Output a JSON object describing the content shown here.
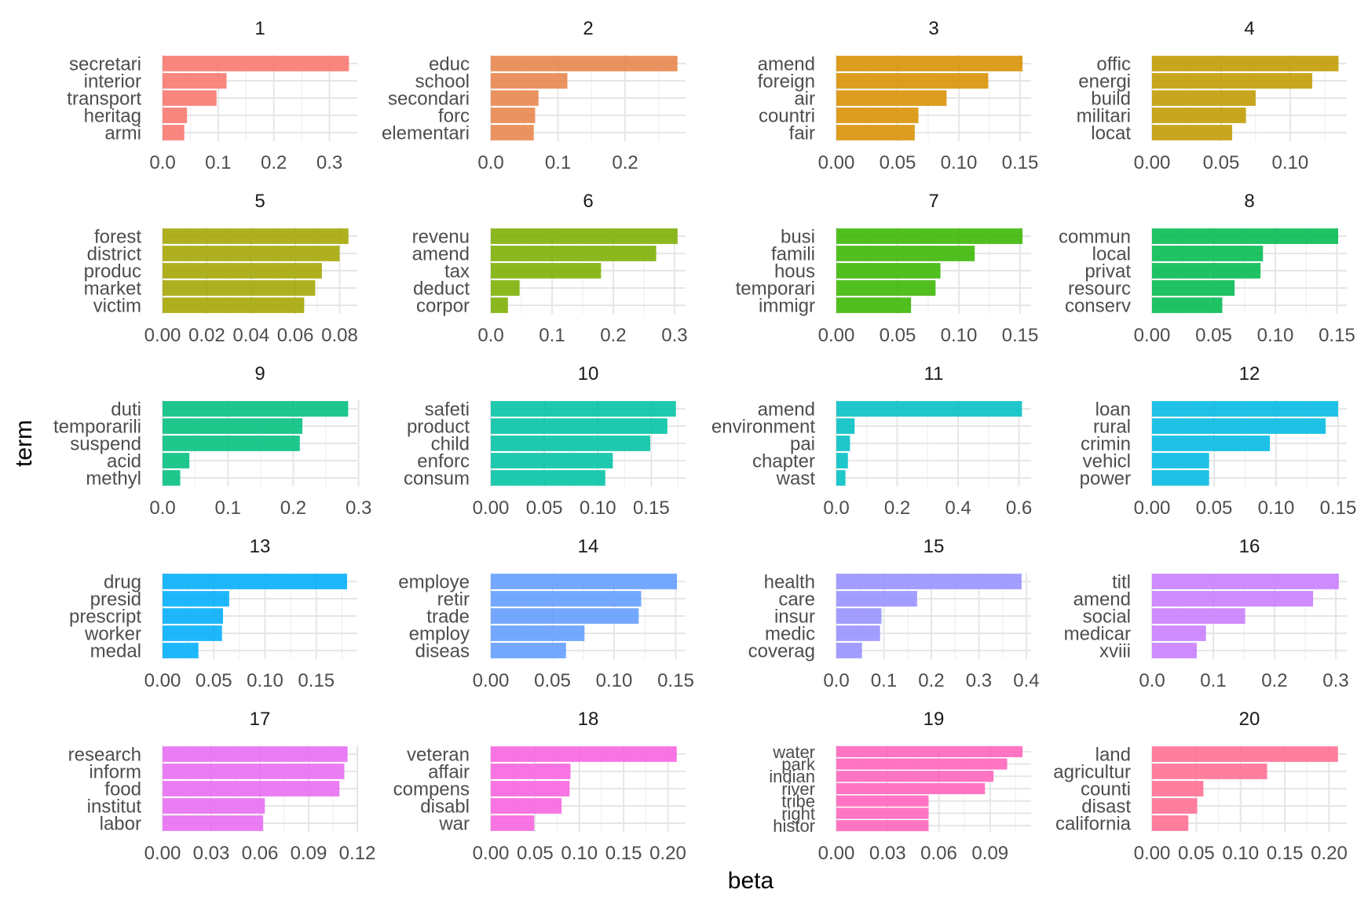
{
  "chart_data": {
    "type": "bar",
    "orientation": "horizontal",
    "layout": "facet-grid 5 rows x 4 cols",
    "xlabel": "beta",
    "ylabel": "term",
    "grid": true,
    "legend": "none",
    "panels": [
      {
        "title": "1",
        "color": "#F8766D",
        "terms": [
          "secretari",
          "interior",
          "transport",
          "heritag",
          "armi"
        ],
        "values": [
          0.335,
          0.115,
          0.097,
          0.044,
          0.039
        ],
        "xlim": [
          0,
          0.35
        ],
        "ticks": [
          0.0,
          0.1,
          0.2,
          0.3
        ],
        "tick_labels": [
          "0.0",
          "0.1",
          "0.2",
          "0.3"
        ]
      },
      {
        "title": "2",
        "color": "#E8844A",
        "terms": [
          "educ",
          "school",
          "secondari",
          "forc",
          "elementari"
        ],
        "values": [
          0.278,
          0.114,
          0.071,
          0.066,
          0.064
        ],
        "xlim": [
          0,
          0.29
        ],
        "ticks": [
          0.0,
          0.1,
          0.2
        ],
        "tick_labels": [
          "0.0",
          "0.1",
          "0.2"
        ]
      },
      {
        "title": "3",
        "color": "#D89000",
        "terms": [
          "amend",
          "foreign",
          "air",
          "countri",
          "fair"
        ],
        "values": [
          0.152,
          0.124,
          0.09,
          0.067,
          0.064
        ],
        "xlim": [
          0,
          0.159
        ],
        "ticks": [
          0.0,
          0.05,
          0.1,
          0.15
        ],
        "tick_labels": [
          "0.00",
          "0.05",
          "0.10",
          "0.15"
        ]
      },
      {
        "title": "4",
        "color": "#C09B00",
        "terms": [
          "offic",
          "energi",
          "build",
          "militari",
          "locat"
        ],
        "values": [
          0.135,
          0.116,
          0.075,
          0.068,
          0.058
        ],
        "xlim": [
          0,
          0.141
        ],
        "ticks": [
          0.0,
          0.05,
          0.1
        ],
        "tick_labels": [
          "0.00",
          "0.05",
          "0.10"
        ]
      },
      {
        "title": "5",
        "color": "#A3A500",
        "terms": [
          "forest",
          "district",
          "produc",
          "market",
          "victim"
        ],
        "values": [
          0.084,
          0.08,
          0.072,
          0.069,
          0.064
        ],
        "xlim": [
          0,
          0.088
        ],
        "ticks": [
          0.0,
          0.02,
          0.04,
          0.06,
          0.08
        ],
        "tick_labels": [
          "0.00",
          "0.02",
          "0.04",
          "0.06",
          "0.08"
        ]
      },
      {
        "title": "6",
        "color": "#7CAE00",
        "terms": [
          "revenu",
          "amend",
          "tax",
          "deduct",
          "corpor"
        ],
        "values": [
          0.305,
          0.27,
          0.18,
          0.047,
          0.028
        ],
        "xlim": [
          0,
          0.318
        ],
        "ticks": [
          0.0,
          0.1,
          0.2,
          0.3
        ],
        "tick_labels": [
          "0.0",
          "0.1",
          "0.2",
          "0.3"
        ]
      },
      {
        "title": "7",
        "color": "#39B600",
        "terms": [
          "busi",
          "famili",
          "hous",
          "temporari",
          "immigr"
        ],
        "values": [
          0.152,
          0.113,
          0.085,
          0.081,
          0.061
        ],
        "xlim": [
          0,
          0.159
        ],
        "ticks": [
          0.0,
          0.05,
          0.1,
          0.15
        ],
        "tick_labels": [
          "0.00",
          "0.05",
          "0.10",
          "0.15"
        ]
      },
      {
        "title": "8",
        "color": "#00BB4E",
        "terms": [
          "commun",
          "local",
          "privat",
          "resourc",
          "conserv"
        ],
        "values": [
          0.151,
          0.09,
          0.088,
          0.067,
          0.057
        ],
        "xlim": [
          0,
          0.158
        ],
        "ticks": [
          0.0,
          0.05,
          0.1,
          0.15
        ],
        "tick_labels": [
          "0.00",
          "0.05",
          "0.10",
          "0.15"
        ]
      },
      {
        "title": "9",
        "color": "#00BF7D",
        "terms": [
          "duti",
          "temporarili",
          "suspend",
          "acid",
          "methyl"
        ],
        "values": [
          0.284,
          0.214,
          0.21,
          0.041,
          0.027
        ],
        "xlim": [
          0,
          0.298
        ],
        "ticks": [
          0.0,
          0.1,
          0.2,
          0.3
        ],
        "tick_labels": [
          "0.0",
          "0.1",
          "0.2",
          "0.3"
        ]
      },
      {
        "title": "10",
        "color": "#00C1A3",
        "terms": [
          "safeti",
          "product",
          "child",
          "enforc",
          "consum"
        ],
        "values": [
          0.173,
          0.165,
          0.149,
          0.114,
          0.107
        ],
        "xlim": [
          0,
          0.182
        ],
        "ticks": [
          0.0,
          0.05,
          0.1,
          0.15
        ],
        "tick_labels": [
          "0.00",
          "0.05",
          "0.10",
          "0.15"
        ]
      },
      {
        "title": "11",
        "color": "#00BFC4",
        "terms": [
          "amend",
          "environment",
          "pai",
          "chapter",
          "wast"
        ],
        "values": [
          0.61,
          0.06,
          0.045,
          0.038,
          0.03
        ],
        "xlim": [
          0,
          0.64
        ],
        "ticks": [
          0.0,
          0.2,
          0.4,
          0.6
        ],
        "tick_labels": [
          "0.0",
          "0.2",
          "0.4",
          "0.6"
        ]
      },
      {
        "title": "12",
        "color": "#00B9E3",
        "terms": [
          "loan",
          "rural",
          "crimin",
          "vehicl",
          "power"
        ],
        "values": [
          0.15,
          0.14,
          0.095,
          0.046,
          0.046
        ],
        "xlim": [
          0,
          0.157
        ],
        "ticks": [
          0.0,
          0.05,
          0.1,
          0.15
        ],
        "tick_labels": [
          "0.00",
          "0.05",
          "0.10",
          "0.15"
        ]
      },
      {
        "title": "13",
        "color": "#00ADFA",
        "terms": [
          "drug",
          "presid",
          "prescript",
          "worker",
          "medal"
        ],
        "values": [
          0.18,
          0.065,
          0.059,
          0.058,
          0.035
        ],
        "xlim": [
          0,
          0.19
        ],
        "ticks": [
          0.0,
          0.05,
          0.1,
          0.15
        ],
        "tick_labels": [
          "0.00",
          "0.05",
          "0.10",
          "0.15"
        ]
      },
      {
        "title": "14",
        "color": "#619CFF",
        "terms": [
          "employe",
          "retir",
          "trade",
          "employ",
          "diseas"
        ],
        "values": [
          0.151,
          0.122,
          0.12,
          0.076,
          0.061
        ],
        "xlim": [
          0,
          0.158
        ],
        "ticks": [
          0.0,
          0.05,
          0.1,
          0.15
        ],
        "tick_labels": [
          "0.00",
          "0.05",
          "0.10",
          "0.15"
        ]
      },
      {
        "title": "15",
        "color": "#9590FF",
        "terms": [
          "health",
          "care",
          "insur",
          "medic",
          "coverag"
        ],
        "values": [
          0.39,
          0.17,
          0.095,
          0.092,
          0.054
        ],
        "xlim": [
          0,
          0.41
        ],
        "ticks": [
          0.0,
          0.1,
          0.2,
          0.3,
          0.4
        ],
        "tick_labels": [
          "0.0",
          "0.1",
          "0.2",
          "0.3",
          "0.4"
        ]
      },
      {
        "title": "16",
        "color": "#C77CFF",
        "terms": [
          "titl",
          "amend",
          "social",
          "medicar",
          "xviii"
        ],
        "values": [
          0.305,
          0.263,
          0.152,
          0.088,
          0.073
        ],
        "xlim": [
          0,
          0.318
        ],
        "ticks": [
          0.0,
          0.1,
          0.2,
          0.3
        ],
        "tick_labels": [
          "0.0",
          "0.1",
          "0.2",
          "0.3"
        ]
      },
      {
        "title": "17",
        "color": "#E76BF3",
        "terms": [
          "research",
          "inform",
          "food",
          "institut",
          "labor"
        ],
        "values": [
          0.114,
          0.112,
          0.109,
          0.063,
          0.062
        ],
        "xlim": [
          0,
          0.12
        ],
        "ticks": [
          0.0,
          0.03,
          0.06,
          0.09,
          0.12
        ],
        "tick_labels": [
          "0.00",
          "0.03",
          "0.06",
          "0.09",
          "0.12"
        ]
      },
      {
        "title": "18",
        "color": "#F862DF",
        "terms": [
          "veteran",
          "affair",
          "compens",
          "disabl",
          "war"
        ],
        "values": [
          0.21,
          0.09,
          0.089,
          0.08,
          0.049
        ],
        "xlim": [
          0,
          0.22
        ],
        "ticks": [
          0.0,
          0.05,
          0.1,
          0.15,
          0.2
        ],
        "tick_labels": [
          "0.00",
          "0.05",
          "0.10",
          "0.15",
          "0.20"
        ]
      },
      {
        "title": "19",
        "color": "#FF62BC",
        "terms": [
          "water",
          "park",
          "indian",
          "river",
          "tribe",
          "right",
          "histor"
        ],
        "values": [
          0.109,
          0.1,
          0.092,
          0.087,
          0.054,
          0.054,
          0.054
        ],
        "xlim": [
          0,
          0.114
        ],
        "ticks": [
          0.0,
          0.03,
          0.06,
          0.09
        ],
        "tick_labels": [
          "0.00",
          "0.03",
          "0.06",
          "0.09"
        ]
      },
      {
        "title": "20",
        "color": "#FF6C91",
        "terms": [
          "land",
          "agricultur",
          "counti",
          "disast",
          "california"
        ],
        "values": [
          0.21,
          0.13,
          0.058,
          0.051,
          0.041
        ],
        "xlim": [
          0,
          0.22
        ],
        "ticks": [
          0.0,
          0.05,
          0.1,
          0.15,
          0.2
        ],
        "tick_labels": [
          "0.00",
          "0.05",
          "0.10",
          "0.15",
          "0.20"
        ]
      }
    ]
  }
}
